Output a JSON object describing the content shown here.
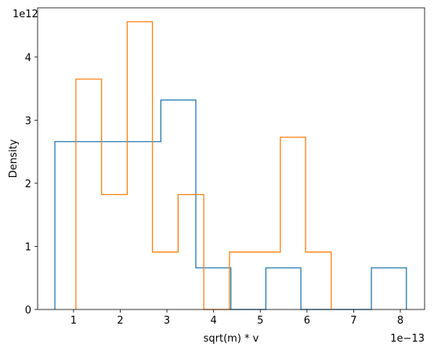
{
  "chart_data": {
    "type": "histogram",
    "xlabel": "sqrt(m) * v",
    "ylabel": "Density",
    "x_offset_label": "1e−13",
    "y_offset_label": "1e12",
    "x_scale_exponent": -13,
    "y_scale_exponent": 12,
    "xlim": [
      0.23,
      8.52
    ],
    "ylim": [
      0,
      4.78
    ],
    "xticks": [
      1,
      2,
      3,
      4,
      5,
      6,
      7,
      8
    ],
    "yticks": [
      0,
      1,
      2,
      3,
      4
    ],
    "style": "step",
    "grid": false,
    "colors": {
      "series_1": "#1f77b4",
      "series_2": "#ff7f0e"
    },
    "series": [
      {
        "color": "#1f77b4",
        "bin_edges": [
          0.6,
          1.36,
          2.11,
          2.87,
          3.62,
          4.37,
          5.12,
          5.87,
          6.63,
          7.38,
          8.13
        ],
        "values": [
          2.66,
          2.66,
          2.66,
          3.32,
          0.66,
          0,
          0.66,
          0,
          0,
          0.66
        ]
      },
      {
        "color": "#ff7f0e",
        "bin_edges": [
          1.05,
          1.6,
          2.15,
          2.69,
          3.24,
          3.79,
          4.34,
          4.88,
          5.43,
          5.97,
          6.52
        ],
        "values": [
          3.65,
          1.82,
          4.56,
          0.91,
          1.82,
          0,
          0.91,
          0.91,
          2.73,
          0.91
        ]
      }
    ]
  }
}
